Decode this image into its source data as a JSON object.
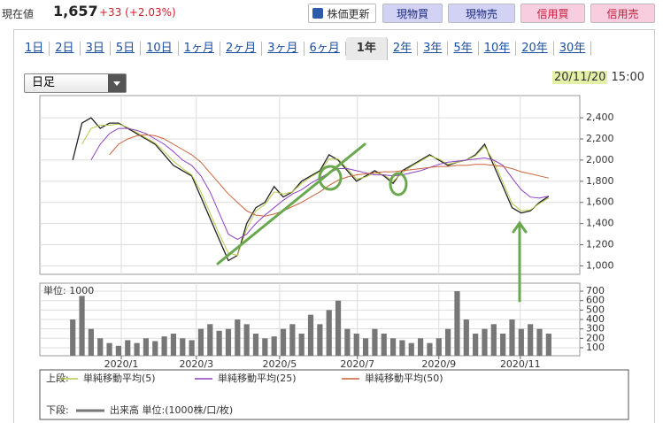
{
  "header": {
    "label": "現在値",
    "price": "1,657",
    "change": "+33 (+2.03%)"
  },
  "buttons": [
    "株価更新",
    "現物買",
    "現物売",
    "信用買",
    "信用売"
  ],
  "tabs": [
    "1日",
    "2日",
    "3日",
    "5日",
    "10日",
    "1ヶ月",
    "2ヶ月",
    "3ヶ月",
    "6ヶ月",
    "1年",
    "2年",
    "3年",
    "5年",
    "10年",
    "20年",
    "30年"
  ],
  "active_tab": 9,
  "dropdown": "日足",
  "date": "20/11/20",
  "time": "15:00",
  "legend_labels": {
    "upper": "上段:",
    "lower": "下段:"
  },
  "chart_data": [
    {
      "type": "line",
      "xlim": [
        -3.6,
        55.4
      ],
      "ylim": [
        920,
        2610
      ],
      "yticks": [
        {
          "value": 1000,
          "label": "1,000"
        },
        {
          "value": 1200,
          "label": "1,200"
        },
        {
          "value": 1400,
          "label": "1,400"
        },
        {
          "value": 1600,
          "label": "1,600"
        },
        {
          "value": 1800,
          "label": "1,800"
        },
        {
          "value": 2000,
          "label": "2,000"
        },
        {
          "value": 2200,
          "label": "2,200"
        },
        {
          "value": 2400,
          "label": "2,400"
        }
      ],
      "grid": true,
      "series": [
        {
          "color": "#222222",
          "values": [
            2000,
            2350,
            2400,
            2300,
            2350,
            2350,
            2300,
            2250,
            2200,
            2150,
            2050,
            1950,
            1900,
            1850,
            1650,
            1450,
            1250,
            1050,
            1100,
            1400,
            1550,
            1600,
            1750,
            1650,
            1700,
            1800,
            1850,
            1900,
            2050,
            2000,
            1900,
            1800,
            1850,
            1900,
            1850,
            1780,
            1900,
            1950,
            2000,
            2050,
            2000,
            1950,
            1980,
            2000,
            2050,
            2150,
            1950,
            1750,
            1550,
            1500,
            1520,
            1600,
            1657
          ]
        },
        {
          "name": "単純移動平均(5)",
          "color": "#b8c84a",
          "values": [
            null,
            2150,
            2300,
            2330,
            2330,
            2340,
            2310,
            2260,
            2210,
            2160,
            2080,
            1990,
            1920,
            1860,
            1700,
            1500,
            1300,
            1120,
            1100,
            1350,
            1520,
            1580,
            1700,
            1680,
            1700,
            1780,
            1840,
            1890,
            2010,
            2010,
            1920,
            1820,
            1840,
            1880,
            1860,
            1800,
            1880,
            1940,
            1990,
            2040,
            2010,
            1960,
            1980,
            2000,
            2040,
            2130,
            1990,
            1790,
            1590,
            1520,
            1530,
            1590,
            1640
          ]
        },
        {
          "name": "単純移動平均(25)",
          "color": "#9040c0",
          "values": [
            null,
            null,
            2000,
            2150,
            2250,
            2300,
            2300,
            2280,
            2250,
            2200,
            2150,
            2080,
            2000,
            1950,
            1850,
            1700,
            1500,
            1300,
            1250,
            1300,
            1400,
            1480,
            1550,
            1620,
            1680,
            1720,
            1780,
            1830,
            1880,
            1920,
            1920,
            1900,
            1880,
            1860,
            1860,
            1850,
            1860,
            1880,
            1900,
            1930,
            1960,
            1980,
            1990,
            2000,
            2010,
            2020,
            2000,
            1950,
            1830,
            1720,
            1650,
            1640,
            1660
          ]
        },
        {
          "name": "単純移動平均(50)",
          "color": "#c8643c",
          "values": [
            null,
            null,
            null,
            null,
            2050,
            2150,
            2200,
            2230,
            2240,
            2230,
            2200,
            2150,
            2100,
            2050,
            1980,
            1880,
            1780,
            1680,
            1600,
            1520,
            1480,
            1470,
            1490,
            1520,
            1560,
            1600,
            1650,
            1700,
            1760,
            1810,
            1840,
            1860,
            1870,
            1880,
            1890,
            1890,
            1900,
            1910,
            1920,
            1930,
            1940,
            1940,
            1950,
            1950,
            1960,
            1960,
            1950,
            1940,
            1920,
            1890,
            1870,
            1850,
            1830
          ]
        }
      ]
    },
    {
      "type": "bar",
      "title": "単位: 1000",
      "xlim": [
        -3.6,
        55.4
      ],
      "ylim": [
        15,
        785
      ],
      "yticks": [
        100,
        200,
        300,
        400,
        500,
        600,
        700
      ],
      "grid": true,
      "xticks": [
        {
          "value": 5.3,
          "label": "2020/1"
        },
        {
          "value": 13.5,
          "label": "2020/3"
        },
        {
          "value": 22.6,
          "label": "2020/5"
        },
        {
          "value": 31.1,
          "label": "2020/7"
        },
        {
          "value": 40,
          "label": "2020/9"
        },
        {
          "value": 48.9,
          "label": "2020/11"
        }
      ],
      "series": [
        {
          "name": "出来高 単位:(1000株/口/枚)",
          "color": "#777777",
          "values": [
            400,
            650,
            300,
            200,
            150,
            120,
            180,
            150,
            200,
            170,
            220,
            250,
            200,
            180,
            300,
            350,
            280,
            300,
            400,
            350,
            250,
            200,
            220,
            300,
            350,
            250,
            450,
            350,
            500,
            600,
            300,
            250,
            200,
            300,
            250,
            200,
            180,
            150,
            200,
            150,
            200,
            300,
            700,
            400,
            250,
            300,
            350,
            250,
            400,
            300,
            350,
            300,
            250
          ]
        }
      ]
    }
  ]
}
